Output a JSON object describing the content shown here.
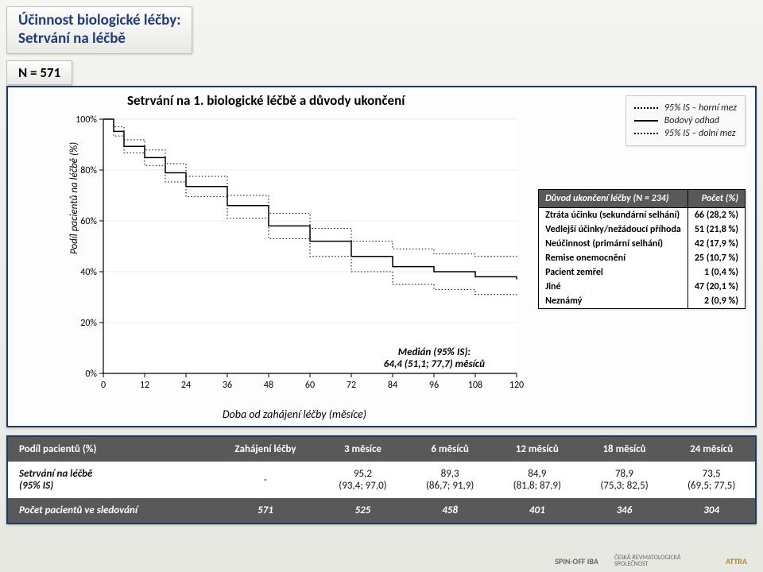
{
  "header": {
    "line1": "Účinnost biologické léčby:",
    "line2": "Setrvání na léčbě"
  },
  "n_label": "N = 571",
  "chart": {
    "title": "Setrvání na 1. biologické léčbě a důvody ukončení",
    "type": "kaplan-meier",
    "legend": {
      "upper": "95% IS – horní mez",
      "point": "Bodový odhad",
      "lower": "95% IS – dolní mez"
    },
    "ylabel": "Podíl pacientů na léčbě (%)",
    "xlabel": "Doba od zahájení léčby (měsíce)",
    "xlim": [
      0,
      120
    ],
    "xtick_step": 12,
    "ylim": [
      0,
      100
    ],
    "ytick_labels": [
      "0%",
      "20%",
      "40%",
      "60%",
      "80%",
      "100%"
    ],
    "xticks": [
      0,
      12,
      24,
      36,
      48,
      60,
      72,
      84,
      96,
      108,
      120
    ],
    "median_label1": "Medián (95% IS):",
    "median_label2": "64,4 (51,1; 77,7) měsíců",
    "stroke_color": "#000000",
    "ci_style": "dotted",
    "background_color": "#ffffff",
    "grid_color": "#dcdcdc",
    "line_width": 1.5,
    "series_point": [
      {
        "x": 0,
        "y": 100
      },
      {
        "x": 3,
        "y": 95.2
      },
      {
        "x": 6,
        "y": 89.3
      },
      {
        "x": 12,
        "y": 84.9
      },
      {
        "x": 18,
        "y": 78.9
      },
      {
        "x": 24,
        "y": 73.5
      },
      {
        "x": 36,
        "y": 66
      },
      {
        "x": 48,
        "y": 58
      },
      {
        "x": 60,
        "y": 52
      },
      {
        "x": 72,
        "y": 46
      },
      {
        "x": 84,
        "y": 42
      },
      {
        "x": 96,
        "y": 40
      },
      {
        "x": 108,
        "y": 38
      },
      {
        "x": 120,
        "y": 37
      }
    ],
    "series_upper": [
      {
        "x": 0,
        "y": 100
      },
      {
        "x": 3,
        "y": 97.0
      },
      {
        "x": 6,
        "y": 91.9
      },
      {
        "x": 12,
        "y": 87.9
      },
      {
        "x": 18,
        "y": 82.5
      },
      {
        "x": 24,
        "y": 77.5
      },
      {
        "x": 36,
        "y": 70
      },
      {
        "x": 48,
        "y": 63
      },
      {
        "x": 60,
        "y": 57
      },
      {
        "x": 72,
        "y": 52
      },
      {
        "x": 84,
        "y": 49
      },
      {
        "x": 96,
        "y": 47
      },
      {
        "x": 108,
        "y": 46
      },
      {
        "x": 120,
        "y": 45
      }
    ],
    "series_lower": [
      {
        "x": 0,
        "y": 100
      },
      {
        "x": 3,
        "y": 93.4
      },
      {
        "x": 6,
        "y": 86.7
      },
      {
        "x": 12,
        "y": 81.8
      },
      {
        "x": 18,
        "y": 75.3
      },
      {
        "x": 24,
        "y": 69.5
      },
      {
        "x": 36,
        "y": 61
      },
      {
        "x": 48,
        "y": 53
      },
      {
        "x": 60,
        "y": 46
      },
      {
        "x": 72,
        "y": 40
      },
      {
        "x": 84,
        "y": 35
      },
      {
        "x": 96,
        "y": 33
      },
      {
        "x": 108,
        "y": 31
      },
      {
        "x": 120,
        "y": 30
      }
    ]
  },
  "reasons": {
    "header_left": "Důvod ukončení léčby (N = 234)",
    "header_right": "Počet (%)",
    "rows": [
      {
        "label": "Ztráta účinku (sekundární selhání)",
        "value": "66 (28,2 %)"
      },
      {
        "label": "Vedlejší účinky/nežádoucí příhoda",
        "value": "51 (21,8 %)"
      },
      {
        "label": "Neúčinnost (primární selhání)",
        "value": "42 (17,9 %)"
      },
      {
        "label": "Remise onemocnění",
        "value": "25 (10,7 %)"
      },
      {
        "label": "Pacient zemřel",
        "value": "1 (0,4 %)"
      },
      {
        "label": "Jiné",
        "value": "47 (20,1 %)"
      },
      {
        "label": "Neznámý",
        "value": "2 (0,9 %)"
      }
    ]
  },
  "lower_table": {
    "columns": [
      "Podíl pacientů (%)",
      "Zahájení léčby",
      "3 měsíce",
      "6 měsíců",
      "12 měsíců",
      "18 měsíců",
      "24 měsíců"
    ],
    "row1_label": "Setrvání na léčbě\n(95% IS)",
    "row1": [
      "-",
      "95,2\n(93,4; 97,0)",
      "89,3\n(86,7; 91,9)",
      "84,9\n(81,8; 87,9)",
      "78,9\n(75,3; 82,5)",
      "73,5\n(69,5; 77,5)"
    ],
    "row2_label": "Počet pacientů ve sledování",
    "row2": [
      "571",
      "525",
      "458",
      "401",
      "346",
      "304"
    ]
  },
  "footer": {
    "spinoff": "SPIN-OFF IBA",
    "org": "ČESKÁ REVMATOLOGICKÁ SPOLEČNOST",
    "attra": "ATTRA"
  },
  "colors": {
    "frame": "#203864",
    "header_bg": "#595959",
    "header_text": "#ffffff",
    "title_text": "#1d3c78",
    "page_bg_top": "#f4f4f0",
    "page_bg_bottom": "#e8e8e2"
  }
}
